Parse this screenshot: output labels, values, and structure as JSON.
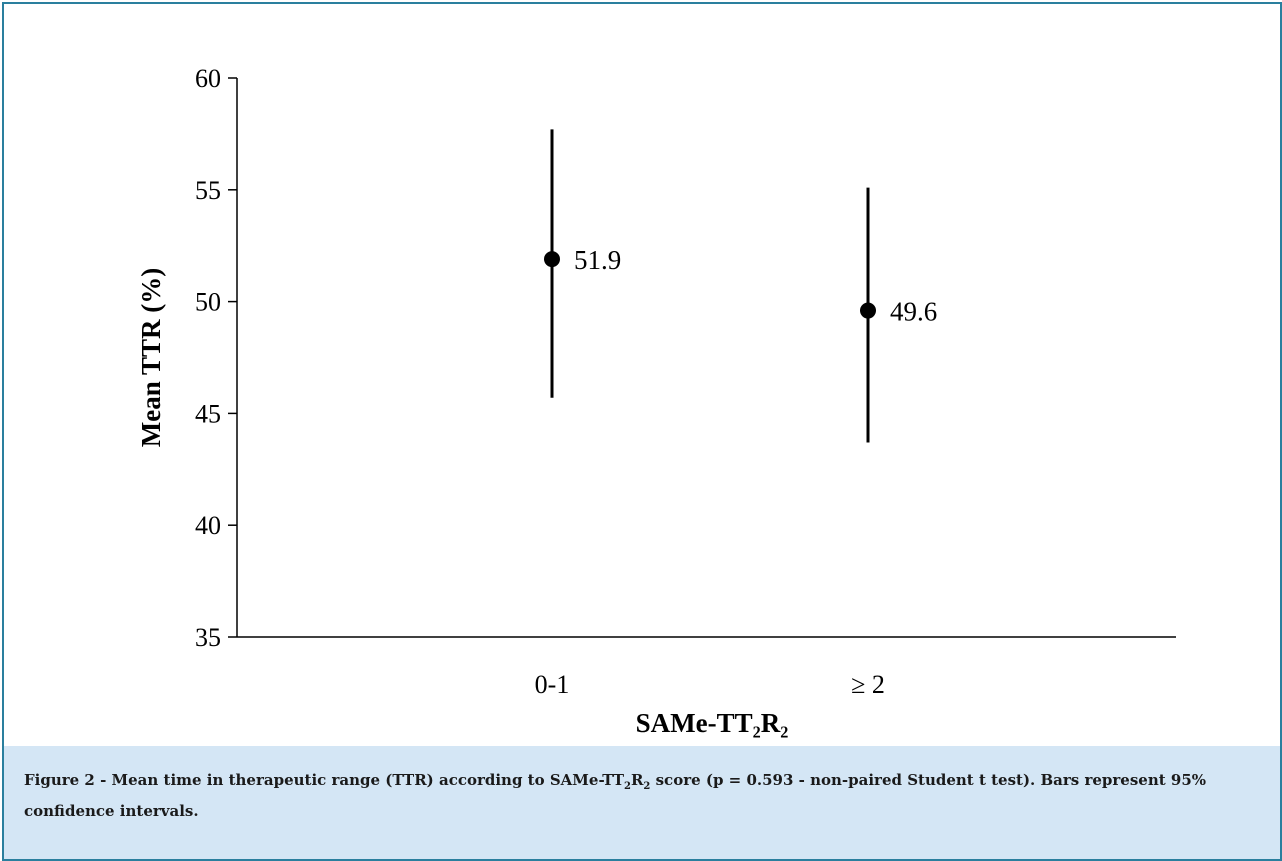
{
  "chart_data": {
    "type": "scatter",
    "categories": [
      "0-1",
      "≥ 2"
    ],
    "series": [
      {
        "values": [
          51.9,
          49.6
        ],
        "ci_low": [
          45.7,
          43.7
        ],
        "ci_high": [
          57.7,
          55.1
        ],
        "value_labels": [
          "51.9",
          "49.6"
        ]
      }
    ],
    "y_ticks": [
      "60",
      "55",
      "50",
      "45",
      "40",
      "35"
    ],
    "y_tick_values": [
      60,
      55,
      50,
      45,
      40,
      35
    ],
    "ylabel": "Mean TTR (%)",
    "xlabel": "SAMe-TT₂R₂",
    "ylim": [
      35,
      60
    ],
    "grid": false,
    "legend": "none"
  },
  "caption": {
    "prefix": "Figure 2 - Mean time in therapeutic range (TTR) according to SAMe-TT",
    "sub1": "2",
    "mid": "R",
    "sub2": "2",
    "suffix": " score (p = 0.593 - non-paired Student t test). Bars represent 95% confidence intervals."
  },
  "colors": {
    "border": "#2a7f9e",
    "caption_bg": "#d4e6f5",
    "marks": "#000000"
  }
}
